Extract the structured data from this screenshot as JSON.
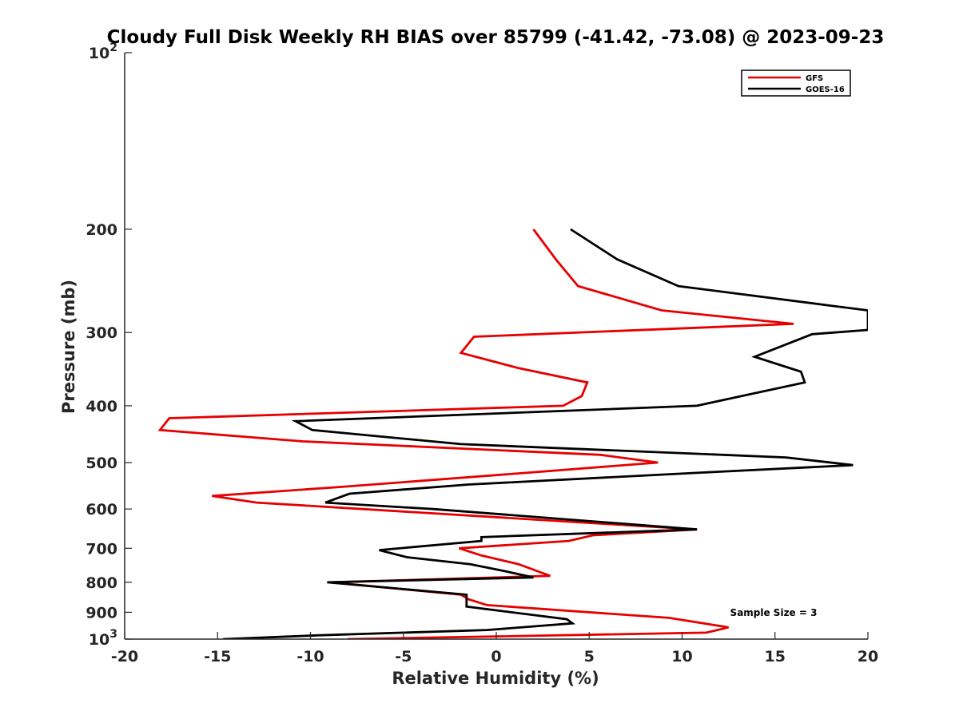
{
  "chart_data": {
    "type": "line",
    "title": "Cloudy Full Disk Weekly RH BIAS over 85799 (-41.42, -73.08) @ 2023-09-23",
    "xlabel": "Relative Humidity (%)",
    "ylabel": "Pressure (mb)",
    "xlim": [
      -20,
      20
    ],
    "ylim": [
      100,
      1000
    ],
    "y_scale": "log",
    "y_reversed": true,
    "grid": false,
    "legend_position": "top-right",
    "x_ticks": [
      "-20",
      "-15",
      "-10",
      "-5",
      "0",
      "5",
      "10",
      "15",
      "20"
    ],
    "y_ticks": [
      {
        "value": 100,
        "base": "10",
        "exp": "2"
      },
      {
        "value": 200,
        "label": "200"
      },
      {
        "value": 300,
        "label": "300"
      },
      {
        "value": 400,
        "label": "400"
      },
      {
        "value": 500,
        "label": "500"
      },
      {
        "value": 600,
        "label": "600"
      },
      {
        "value": 700,
        "label": "700"
      },
      {
        "value": 800,
        "label": "800"
      },
      {
        "value": 900,
        "label": "900"
      },
      {
        "value": 1000,
        "base": "10",
        "exp": "3"
      }
    ],
    "series": [
      {
        "name": "GFS",
        "color": "#e60000",
        "points": [
          [
            2.0,
            200
          ],
          [
            3.2,
            225
          ],
          [
            4.4,
            250
          ],
          [
            8.9,
            275
          ],
          [
            16.0,
            290
          ],
          [
            -1.2,
            305
          ],
          [
            -1.9,
            325
          ],
          [
            1.2,
            345
          ],
          [
            4.9,
            365
          ],
          [
            4.6,
            385
          ],
          [
            3.6,
            400
          ],
          [
            -17.6,
            420
          ],
          [
            -18.1,
            440
          ],
          [
            -10.4,
            460
          ],
          [
            5.6,
            485
          ],
          [
            8.7,
            500
          ],
          [
            1.8,
            520
          ],
          [
            -8.3,
            550
          ],
          [
            -15.3,
            570
          ],
          [
            -12.9,
            585
          ],
          [
            10.8,
            650
          ],
          [
            5.2,
            665
          ],
          [
            3.9,
            680
          ],
          [
            -2.0,
            700
          ],
          [
            -0.8,
            720
          ],
          [
            1.2,
            745
          ],
          [
            2.9,
            780
          ],
          [
            -8.9,
            800
          ],
          [
            -1.9,
            840
          ],
          [
            -1.5,
            855
          ],
          [
            -0.5,
            875
          ],
          [
            9.3,
            920
          ],
          [
            12.5,
            955
          ],
          [
            11.3,
            975
          ],
          [
            -8.0,
            1000
          ]
        ]
      },
      {
        "name": "GOES-16",
        "color": "#000000",
        "points": [
          [
            4.0,
            200
          ],
          [
            6.5,
            225
          ],
          [
            9.8,
            250
          ],
          [
            18.0,
            270
          ],
          [
            20.0,
            275
          ],
          [
            20.0,
            297
          ],
          [
            17.0,
            302
          ],
          [
            13.9,
            330
          ],
          [
            16.4,
            350
          ],
          [
            16.6,
            365
          ],
          [
            13.2,
            385
          ],
          [
            10.8,
            400
          ],
          [
            -10.8,
            425
          ],
          [
            -9.9,
            440
          ],
          [
            -1.9,
            465
          ],
          [
            15.6,
            490
          ],
          [
            19.2,
            505
          ],
          [
            11.1,
            520
          ],
          [
            -1.5,
            545
          ],
          [
            -7.9,
            565
          ],
          [
            -9.2,
            585
          ],
          [
            -3.4,
            600
          ],
          [
            10.8,
            650
          ],
          [
            -0.8,
            670
          ],
          [
            -0.8,
            680
          ],
          [
            -6.3,
            705
          ],
          [
            -4.8,
            725
          ],
          [
            -1.4,
            745
          ],
          [
            0.4,
            765
          ],
          [
            2.0,
            785
          ],
          [
            -9.1,
            800
          ],
          [
            -1.6,
            840
          ],
          [
            -1.6,
            855
          ],
          [
            -1.6,
            880
          ],
          [
            3.8,
            925
          ],
          [
            4.1,
            940
          ],
          [
            -0.5,
            965
          ],
          [
            -9.5,
            985
          ],
          [
            -14.7,
            1000
          ]
        ]
      }
    ],
    "annotation": "Sample Size = 3"
  }
}
